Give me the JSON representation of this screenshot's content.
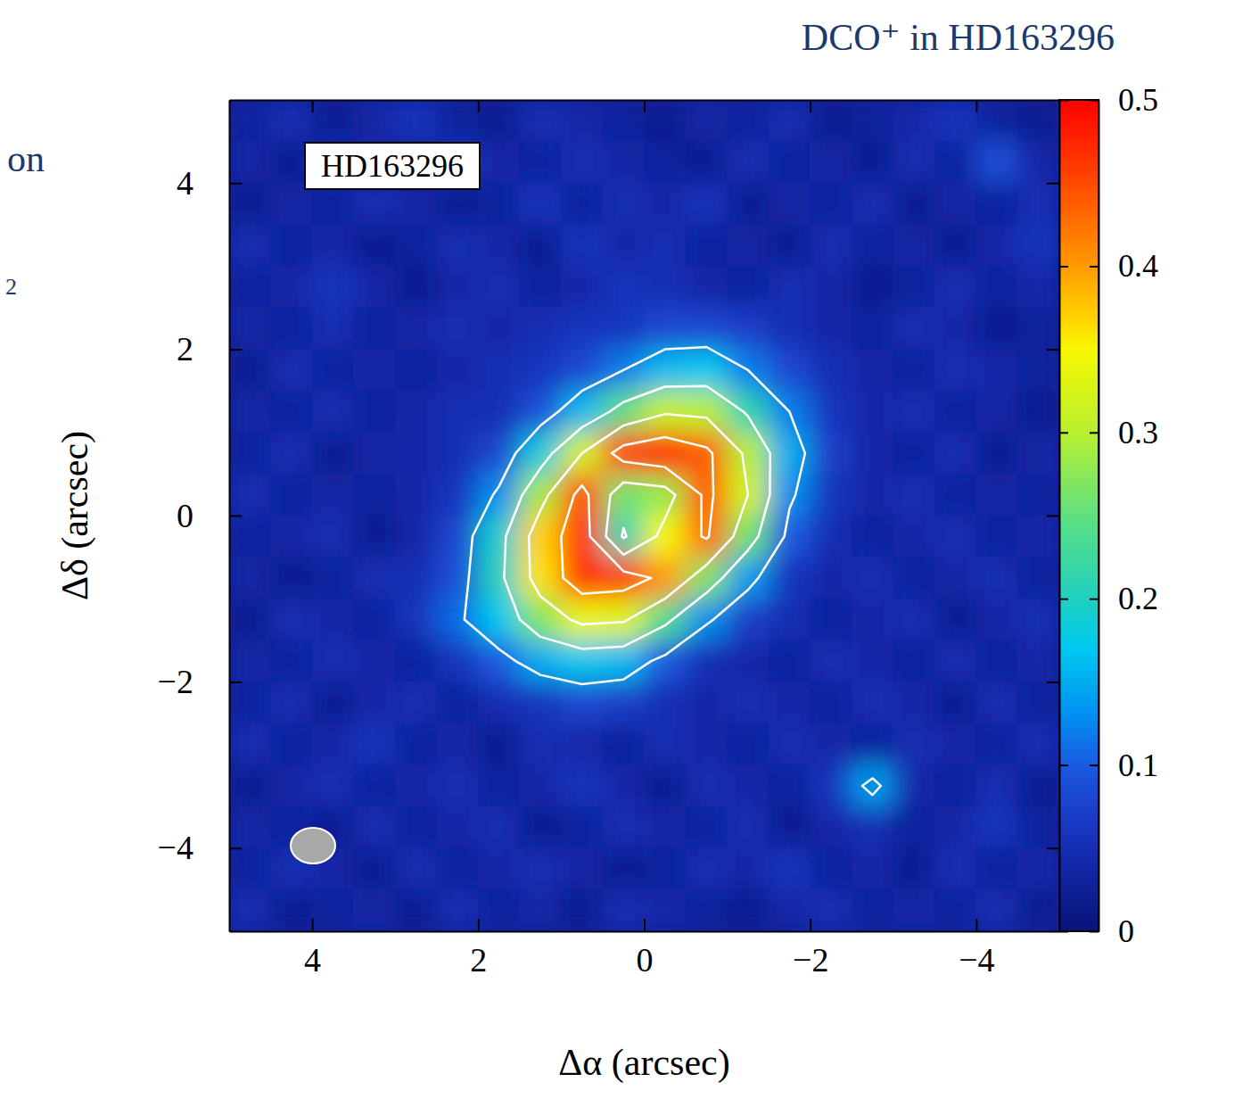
{
  "chart_data": {
    "type": "heatmap",
    "title": "DCO⁺ in HD163296",
    "xlabel": "Δα (arcsec)",
    "ylabel": "Δδ (arcsec)",
    "annotations": [
      "HD163296",
      "on",
      "2"
    ],
    "xlim": [
      5,
      -5
    ],
    "ylim": [
      -5,
      5
    ],
    "xticks": [
      4,
      2,
      0,
      {
        "value": -2,
        "label": "−2"
      },
      {
        "value": -4,
        "label": "−4"
      }
    ],
    "yticks": [
      {
        "value": -4,
        "label": "−4"
      },
      {
        "value": -2,
        "label": "−2"
      },
      0,
      2,
      4
    ],
    "colorbar_range": [
      0,
      0.5
    ],
    "colorbar_ticks": [
      0,
      0.1,
      0.2,
      0.3,
      0.4,
      0.5
    ],
    "contour_levels": [
      0.12,
      0.22,
      0.32,
      0.42
    ],
    "x": [
      4.75,
      4.25,
      3.75,
      3.25,
      2.75,
      2.25,
      1.75,
      1.25,
      0.75,
      0.25,
      -0.25,
      -0.75,
      -1.25,
      -1.75,
      -2.25,
      -2.75,
      -3.25,
      -3.75,
      -4.25,
      -4.75
    ],
    "y": [
      4.75,
      4.25,
      3.75,
      3.25,
      2.75,
      2.25,
      1.75,
      1.25,
      0.75,
      0.25,
      -0.25,
      -0.75,
      -1.25,
      -1.75,
      -2.25,
      -2.75,
      -3.25,
      -3.75,
      -4.25,
      -4.75
    ],
    "values": [
      [
        0.03,
        0.05,
        0.02,
        0.04,
        0.06,
        0.03,
        0.02,
        0.05,
        0.04,
        0.03,
        0.02,
        0.04,
        0.03,
        0.05,
        0.02,
        0.03,
        0.04,
        0.06,
        0.03,
        0.02
      ],
      [
        0.04,
        0.02,
        0.05,
        0.03,
        0.02,
        0.06,
        0.04,
        0.03,
        0.05,
        0.04,
        0.03,
        0.02,
        0.05,
        0.03,
        0.04,
        0.02,
        0.05,
        0.03,
        0.09,
        0.04
      ],
      [
        0.02,
        0.04,
        0.03,
        0.05,
        0.04,
        0.02,
        0.03,
        0.06,
        0.03,
        0.05,
        0.04,
        0.06,
        0.02,
        0.04,
        0.03,
        0.05,
        0.02,
        0.04,
        0.03,
        0.05
      ],
      [
        0.05,
        0.03,
        0.04,
        0.02,
        0.03,
        0.05,
        0.04,
        0.02,
        0.06,
        0.04,
        0.05,
        0.03,
        0.04,
        0.02,
        0.05,
        0.03,
        0.04,
        0.02,
        0.04,
        0.06
      ],
      [
        0.03,
        0.04,
        0.06,
        0.04,
        0.02,
        0.04,
        0.05,
        0.03,
        0.04,
        0.06,
        0.05,
        0.04,
        0.03,
        0.05,
        0.04,
        0.02,
        0.03,
        0.05,
        0.03,
        0.04
      ],
      [
        0.04,
        0.03,
        0.05,
        0.03,
        0.04,
        0.05,
        0.04,
        0.05,
        0.06,
        0.06,
        0.08,
        0.08,
        0.07,
        0.05,
        0.04,
        0.03,
        0.05,
        0.04,
        0.02,
        0.03
      ],
      [
        0.02,
        0.05,
        0.03,
        0.04,
        0.03,
        0.04,
        0.05,
        0.06,
        0.08,
        0.12,
        0.16,
        0.17,
        0.12,
        0.08,
        0.05,
        0.04,
        0.03,
        0.05,
        0.04,
        0.03
      ],
      [
        0.04,
        0.03,
        0.05,
        0.03,
        0.04,
        0.05,
        0.05,
        0.09,
        0.16,
        0.25,
        0.31,
        0.3,
        0.21,
        0.12,
        0.06,
        0.04,
        0.05,
        0.03,
        0.04,
        0.02
      ],
      [
        0.03,
        0.05,
        0.02,
        0.04,
        0.04,
        0.05,
        0.08,
        0.18,
        0.32,
        0.46,
        0.49,
        0.44,
        0.3,
        0.15,
        0.07,
        0.04,
        0.03,
        0.05,
        0.02,
        0.04
      ],
      [
        0.05,
        0.03,
        0.04,
        0.03,
        0.04,
        0.06,
        0.13,
        0.29,
        0.45,
        0.26,
        0.28,
        0.44,
        0.32,
        0.13,
        0.06,
        0.04,
        0.05,
        0.03,
        0.04,
        0.03
      ],
      [
        0.03,
        0.04,
        0.05,
        0.02,
        0.04,
        0.08,
        0.19,
        0.37,
        0.47,
        0.21,
        0.35,
        0.43,
        0.26,
        0.1,
        0.05,
        0.03,
        0.04,
        0.05,
        0.03,
        0.04
      ],
      [
        0.04,
        0.02,
        0.03,
        0.05,
        0.05,
        0.09,
        0.2,
        0.36,
        0.47,
        0.46,
        0.4,
        0.27,
        0.14,
        0.06,
        0.04,
        0.05,
        0.03,
        0.04,
        0.05,
        0.03
      ],
      [
        0.02,
        0.05,
        0.04,
        0.03,
        0.06,
        0.11,
        0.17,
        0.27,
        0.34,
        0.33,
        0.24,
        0.13,
        0.07,
        0.05,
        0.03,
        0.04,
        0.05,
        0.02,
        0.04,
        0.05
      ],
      [
        0.04,
        0.03,
        0.05,
        0.04,
        0.03,
        0.06,
        0.1,
        0.15,
        0.17,
        0.16,
        0.1,
        0.05,
        0.04,
        0.03,
        0.05,
        0.04,
        0.03,
        0.05,
        0.03,
        0.04
      ],
      [
        0.03,
        0.05,
        0.02,
        0.04,
        0.05,
        0.03,
        0.05,
        0.06,
        0.08,
        0.07,
        0.05,
        0.04,
        0.05,
        0.04,
        0.03,
        0.05,
        0.04,
        0.02,
        0.05,
        0.03
      ],
      [
        0.05,
        0.03,
        0.04,
        0.06,
        0.03,
        0.04,
        0.02,
        0.05,
        0.04,
        0.03,
        0.05,
        0.04,
        0.03,
        0.05,
        0.04,
        0.03,
        0.05,
        0.04,
        0.03,
        0.05
      ],
      [
        0.02,
        0.04,
        0.05,
        0.03,
        0.04,
        0.05,
        0.03,
        0.04,
        0.06,
        0.04,
        0.02,
        0.05,
        0.04,
        0.03,
        0.06,
        0.14,
        0.04,
        0.03,
        0.05,
        0.02
      ],
      [
        0.04,
        0.03,
        0.02,
        0.05,
        0.03,
        0.04,
        0.05,
        0.02,
        0.03,
        0.05,
        0.04,
        0.03,
        0.05,
        0.02,
        0.04,
        0.05,
        0.03,
        0.04,
        0.06,
        0.03
      ],
      [
        0.03,
        0.05,
        0.04,
        0.02,
        0.05,
        0.03,
        0.04,
        0.05,
        0.04,
        0.02,
        0.03,
        0.05,
        0.04,
        0.06,
        0.03,
        0.04,
        0.02,
        0.05,
        0.03,
        0.04
      ],
      [
        0.05,
        0.02,
        0.03,
        0.04,
        0.02,
        0.05,
        0.03,
        0.04,
        0.02,
        0.05,
        0.04,
        0.03,
        0.02,
        0.04,
        0.05,
        0.03,
        0.04,
        0.03,
        0.05,
        0.02
      ]
    ]
  }
}
